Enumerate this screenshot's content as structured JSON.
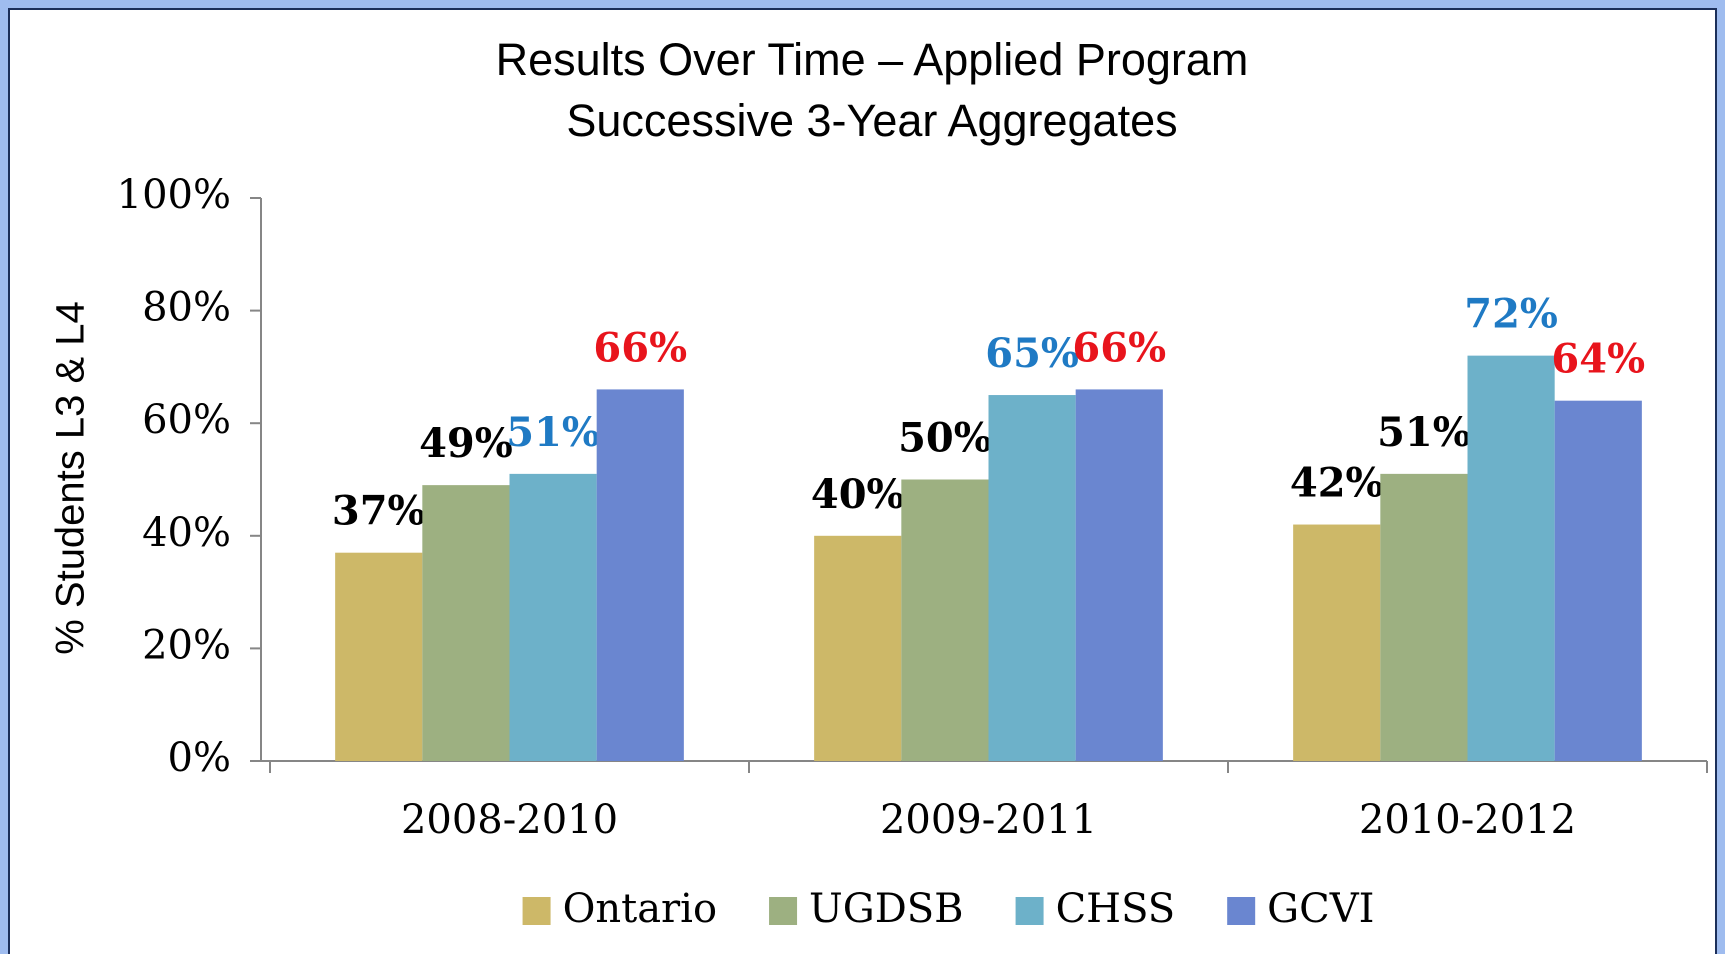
{
  "chart_data": {
    "type": "bar",
    "title": [
      "Results Over Time – Applied Program",
      "Successive 3-Year Aggregates"
    ],
    "y_label": "% Students L3 & L4",
    "categories": [
      "2008-2010",
      "2009-2011",
      "2010-2012"
    ],
    "series": [
      {
        "name": "Ontario",
        "color": "#cdb868",
        "label_color": "#000000",
        "values": [
          37,
          40,
          42
        ],
        "value_labels": [
          "37%",
          "40%",
          "42%"
        ]
      },
      {
        "name": "UGDSB",
        "color": "#9db081",
        "label_color": "#000000",
        "values": [
          49,
          50,
          51
        ],
        "value_labels": [
          "49%",
          "50%",
          "51%"
        ]
      },
      {
        "name": "CHSS",
        "color": "#6db1c9",
        "label_color": "#1f7ac4",
        "values": [
          51,
          65,
          72
        ],
        "value_labels": [
          "51%",
          "65%",
          "72%"
        ]
      },
      {
        "name": "GCVI",
        "color": "#6a86d0",
        "label_color": "#e8141c",
        "values": [
          66,
          66,
          64
        ],
        "value_labels": [
          "66%",
          "66%",
          "64%"
        ]
      }
    ],
    "ylim": [
      0,
      100
    ],
    "yticks": [
      {
        "value": 0,
        "label": "0%"
      },
      {
        "value": 20,
        "label": "20%"
      },
      {
        "value": 40,
        "label": "40%"
      },
      {
        "value": 60,
        "label": "60%"
      },
      {
        "value": 80,
        "label": "80%"
      },
      {
        "value": 100,
        "label": "100%"
      }
    ],
    "grid": false,
    "legend": "bottom"
  }
}
